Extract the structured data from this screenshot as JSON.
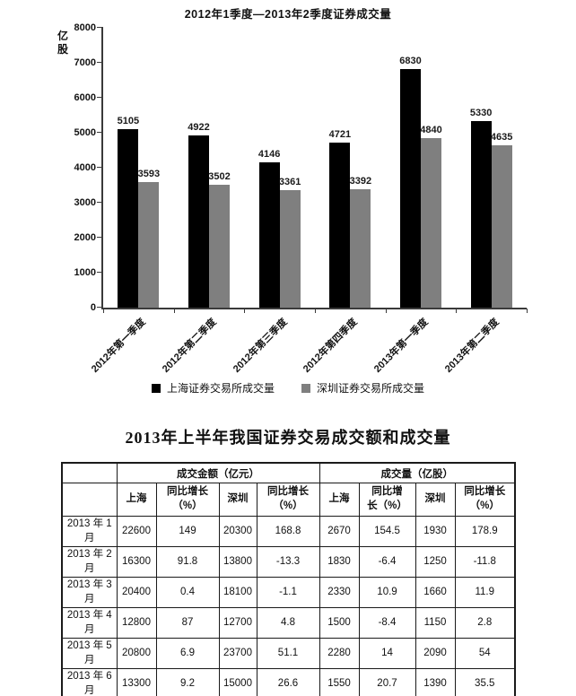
{
  "chart_data": [
    {
      "type": "bar",
      "title": "2012年1季度—2013年2季度证券成交量",
      "ylabel": "亿股",
      "y_unit_display": "亿\n股",
      "categories": [
        "2012年第一季度",
        "2012年第二季度",
        "2012年第三季度",
        "2012年第四季度",
        "2013年第一季度",
        "2013年第二季度"
      ],
      "series": [
        {
          "name": "上海证券交易所成交量",
          "color": "#000000",
          "values": [
            5105,
            4922,
            4146,
            4721,
            6830,
            5330
          ]
        },
        {
          "name": "深圳证券交易所成交量",
          "color": "#7f7f7f",
          "values": [
            3593,
            3502,
            3361,
            3392,
            4840,
            4635
          ]
        }
      ],
      "ylim": [
        0,
        8000
      ],
      "ytick_step": 1000,
      "grid": false,
      "legend_position": "bottom",
      "bar_value_labels": true
    },
    {
      "type": "table",
      "title": "2013年上半年我国证券交易成交额和成交量",
      "corner_header": "",
      "group_headers": [
        {
          "label": "成交金额（亿元）",
          "span": 4
        },
        {
          "label": "成交量（亿股）",
          "span": 4
        }
      ],
      "column_headers": [
        "上海",
        "同比增长\n（%）",
        "深圳",
        "同比增长\n（%）",
        "上海",
        "同比增\n长（%）",
        "深圳",
        "同比增长\n（%）"
      ],
      "rows": [
        {
          "label": "2013 年 1 月",
          "values": [
            "22600",
            "149",
            "20300",
            "168.8",
            "2670",
            "154.5",
            "1930",
            "178.9"
          ]
        },
        {
          "label": "2013 年 2 月",
          "values": [
            "16300",
            "91.8",
            "13800",
            "-13.3",
            "1830",
            "-6.4",
            "1250",
            "-11.8"
          ]
        },
        {
          "label": "2013 年 3 月",
          "values": [
            "20400",
            "0.4",
            "18100",
            "-1.1",
            "2330",
            "10.9",
            "1660",
            "11.9"
          ]
        },
        {
          "label": "2013 年 4 月",
          "values": [
            "12800",
            "87",
            "12700",
            "4.8",
            "1500",
            "-8.4",
            "1150",
            "2.8"
          ]
        },
        {
          "label": "2013 年 5 月",
          "values": [
            "20800",
            "6.9",
            "23700",
            "51.1",
            "2280",
            "14",
            "2090",
            "54"
          ]
        },
        {
          "label": "2013 年 6 月",
          "values": [
            "13300",
            "9.2",
            "15000",
            "26.6",
            "1550",
            "20.7",
            "1390",
            "35.5"
          ]
        }
      ]
    }
  ]
}
